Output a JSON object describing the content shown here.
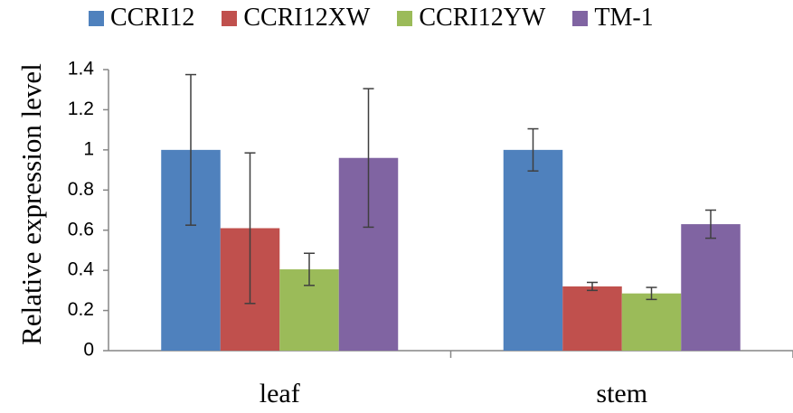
{
  "chart_data": {
    "type": "bar",
    "title": "",
    "xlabel": "",
    "ylabel": "Relative  expression level",
    "categories": [
      "leaf",
      "stem"
    ],
    "series": [
      {
        "name": "CCRI12",
        "color": "#4F81BD",
        "values": [
          1.0,
          1.0
        ],
        "errors": [
          0.375,
          0.105
        ]
      },
      {
        "name": "CCRI12XW",
        "color": "#C0504D",
        "values": [
          0.61,
          0.32
        ],
        "errors": [
          0.375,
          0.02
        ]
      },
      {
        "name": "CCRI12YW",
        "color": "#9BBB59",
        "values": [
          0.405,
          0.285
        ],
        "errors": [
          0.08,
          0.03
        ]
      },
      {
        "name": "TM-1",
        "color": "#8064A2",
        "values": [
          0.96,
          0.63
        ],
        "errors": [
          0.345,
          0.07
        ]
      }
    ],
    "ylim": [
      0,
      1.4
    ],
    "yticks": [
      "0",
      "0.2",
      "0.4",
      "0.6",
      "0.8",
      "1",
      "1.2",
      "1.4"
    ],
    "legend_position": "top",
    "grid": false
  }
}
